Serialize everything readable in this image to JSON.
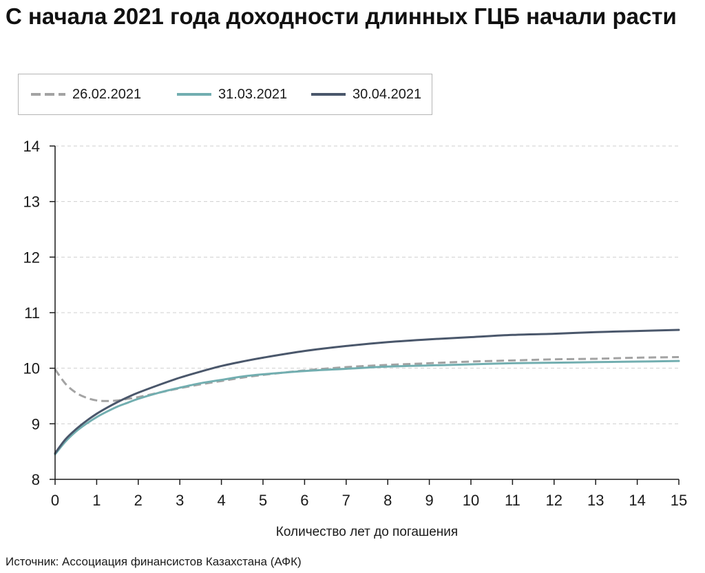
{
  "title": "С начала 2021 года доходности длинных ГЦБ начали расти",
  "source": "Источник: Ассоциация финансистов Казахстана (АФК)",
  "legend": {
    "items": [
      {
        "label": "26.02.2021",
        "color": "#a3a3a3",
        "style": "dashed"
      },
      {
        "label": "31.03.2021",
        "color": "#72aeb0",
        "style": "solid"
      },
      {
        "label": "30.04.2021",
        "color": "#4a576b",
        "style": "solid"
      }
    ]
  },
  "chart_data": {
    "type": "line",
    "xlabel": "Количество лет до погашения",
    "ylabel": "",
    "xlim": [
      0,
      15
    ],
    "ylim": [
      8,
      14
    ],
    "xticks": [
      0,
      1,
      2,
      3,
      4,
      5,
      6,
      7,
      8,
      9,
      10,
      11,
      12,
      13,
      14,
      15
    ],
    "yticks": [
      8,
      9,
      10,
      11,
      12,
      13,
      14
    ],
    "grid": "horizontal dashed",
    "legend_position": "top",
    "series": [
      {
        "name": "26.02.2021",
        "color": "#a3a3a3",
        "style": "dashed",
        "x": [
          0,
          0.25,
          0.5,
          0.75,
          1,
          1.25,
          1.5,
          1.75,
          2,
          2.5,
          3,
          3.5,
          4,
          4.5,
          5,
          6,
          7,
          8,
          9,
          10,
          11,
          12,
          13,
          14,
          15
        ],
        "y": [
          9.98,
          9.72,
          9.56,
          9.47,
          9.42,
          9.41,
          9.42,
          9.45,
          9.48,
          9.56,
          9.64,
          9.71,
          9.77,
          9.83,
          9.88,
          9.96,
          10.02,
          10.06,
          10.09,
          10.12,
          10.14,
          10.16,
          10.17,
          10.19,
          10.2
        ]
      },
      {
        "name": "31.03.2021",
        "color": "#72aeb0",
        "style": "solid",
        "x": [
          0,
          0.25,
          0.5,
          0.75,
          1,
          1.25,
          1.5,
          1.75,
          2,
          2.5,
          3,
          3.5,
          4,
          4.5,
          5,
          6,
          7,
          8,
          9,
          10,
          11,
          12,
          13,
          14,
          15
        ],
        "y": [
          8.45,
          8.68,
          8.86,
          9.0,
          9.12,
          9.22,
          9.31,
          9.38,
          9.45,
          9.56,
          9.65,
          9.73,
          9.79,
          9.85,
          9.89,
          9.95,
          9.99,
          10.03,
          10.05,
          10.07,
          10.09,
          10.1,
          10.11,
          10.12,
          10.13
        ]
      },
      {
        "name": "30.04.2021",
        "color": "#4a576b",
        "style": "solid",
        "x": [
          0,
          0.25,
          0.5,
          0.75,
          1,
          1.25,
          1.5,
          1.75,
          2,
          2.5,
          3,
          3.5,
          4,
          4.5,
          5,
          6,
          7,
          8,
          9,
          10,
          11,
          12,
          13,
          14,
          15
        ],
        "y": [
          8.47,
          8.72,
          8.9,
          9.05,
          9.18,
          9.29,
          9.39,
          9.48,
          9.56,
          9.7,
          9.83,
          9.94,
          10.04,
          10.12,
          10.19,
          10.31,
          10.4,
          10.47,
          10.52,
          10.56,
          10.6,
          10.62,
          10.65,
          10.67,
          10.69
        ]
      }
    ]
  }
}
